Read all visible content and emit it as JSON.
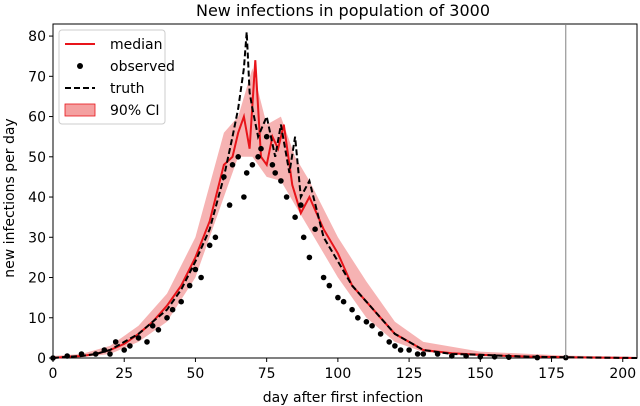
{
  "chart_data": {
    "type": "line",
    "title": "New infections in population of 3000",
    "xlabel": "day after first infection",
    "ylabel": "new infections per day",
    "xlim": [
      0,
      205
    ],
    "ylim": [
      0,
      83
    ],
    "xticks": [
      0,
      25,
      50,
      75,
      100,
      125,
      150,
      175,
      200
    ],
    "yticks": [
      0,
      10,
      20,
      30,
      40,
      50,
      60,
      70,
      80
    ],
    "vline_x": 180,
    "legend": {
      "position": "top-left",
      "entries": [
        {
          "label": "median",
          "style": "red-line"
        },
        {
          "label": "observed",
          "style": "black-dot"
        },
        {
          "label": "truth",
          "style": "dashed-line"
        },
        {
          "label": "90% CI",
          "style": "red-band"
        }
      ]
    },
    "colors": {
      "median": "#e8141a",
      "ci": "#f4a0a0",
      "truth": "#000000",
      "observed": "#000000",
      "vline": "#808080"
    },
    "truth_curve": {
      "x": [
        0,
        5,
        10,
        15,
        20,
        25,
        30,
        35,
        40,
        45,
        50,
        55,
        60,
        63,
        65,
        67,
        68,
        69,
        70,
        72,
        75,
        78,
        80,
        83,
        85,
        87,
        90,
        95,
        100,
        105,
        110,
        115,
        120,
        125,
        130,
        140,
        150,
        160,
        170,
        180,
        190,
        205
      ],
      "y": [
        0,
        0.3,
        0.5,
        1,
        2,
        4,
        6,
        9,
        12,
        17,
        24,
        32,
        45,
        55,
        62,
        72,
        81,
        66,
        62,
        55,
        60,
        50,
        58,
        46,
        55,
        40,
        44,
        30,
        24,
        18,
        14,
        10,
        6,
        4,
        2,
        1,
        0.8,
        0.5,
        0.3,
        0.2,
        0.1,
        0
      ]
    },
    "median_curve": {
      "x": [
        0,
        5,
        10,
        15,
        20,
        25,
        30,
        35,
        40,
        45,
        50,
        55,
        60,
        63,
        65,
        67,
        69,
        71,
        73,
        75,
        77,
        79,
        81,
        84,
        87,
        90,
        95,
        100,
        105,
        110,
        115,
        120,
        125,
        130,
        140,
        150,
        160,
        170,
        180,
        190,
        205
      ],
      "y": [
        0,
        0.3,
        0.5,
        1,
        2,
        3.5,
        6,
        9,
        13,
        18,
        25,
        34,
        48,
        50,
        56,
        60,
        52,
        74,
        50,
        48,
        55,
        52,
        58,
        43,
        36,
        40,
        32,
        26,
        18,
        14,
        10,
        6,
        4,
        2,
        1.2,
        0.8,
        0.5,
        0.3,
        0.2,
        0.1,
        0
      ]
    },
    "ci_band": {
      "x": [
        0,
        10,
        20,
        30,
        40,
        50,
        60,
        65,
        70,
        75,
        80,
        85,
        90,
        100,
        110,
        120,
        130,
        150,
        180,
        205
      ],
      "lower": [
        0,
        0.2,
        1,
        4,
        9,
        20,
        40,
        50,
        50,
        45,
        44,
        38,
        32,
        20,
        10,
        4,
        1.5,
        0.4,
        0.1,
        0
      ],
      "upper": [
        0.5,
        1,
        3,
        8,
        16,
        30,
        56,
        60,
        72,
        58,
        60,
        50,
        44,
        30,
        19,
        9,
        4,
        1.6,
        0.6,
        0.3
      ]
    },
    "observed": {
      "x": [
        0,
        5,
        10,
        15,
        18,
        20,
        22,
        25,
        27,
        30,
        33,
        35,
        37,
        40,
        42,
        45,
        48,
        50,
        52,
        55,
        57,
        60,
        62,
        63,
        65,
        67,
        68,
        70,
        72,
        73,
        75,
        77,
        78,
        80,
        82,
        85,
        87,
        88,
        90,
        92,
        95,
        97,
        100,
        102,
        105,
        107,
        110,
        112,
        115,
        118,
        120,
        122,
        125,
        128,
        130,
        135,
        140,
        145,
        150,
        155,
        160,
        170,
        180
      ],
      "y": [
        0,
        0.5,
        1,
        1,
        2,
        1,
        4,
        2,
        3,
        5,
        4,
        8,
        7,
        10,
        12,
        14,
        18,
        22,
        20,
        28,
        30,
        45,
        38,
        48,
        50,
        40,
        46,
        48,
        50,
        52,
        55,
        48,
        46,
        44,
        40,
        35,
        38,
        30,
        25,
        32,
        20,
        18,
        15,
        14,
        12,
        10,
        9,
        8,
        6,
        4,
        3,
        2,
        2,
        1,
        1,
        1,
        0.5,
        0.5,
        0.3,
        0.3,
        0.2,
        0.1,
        0.1
      ]
    }
  }
}
